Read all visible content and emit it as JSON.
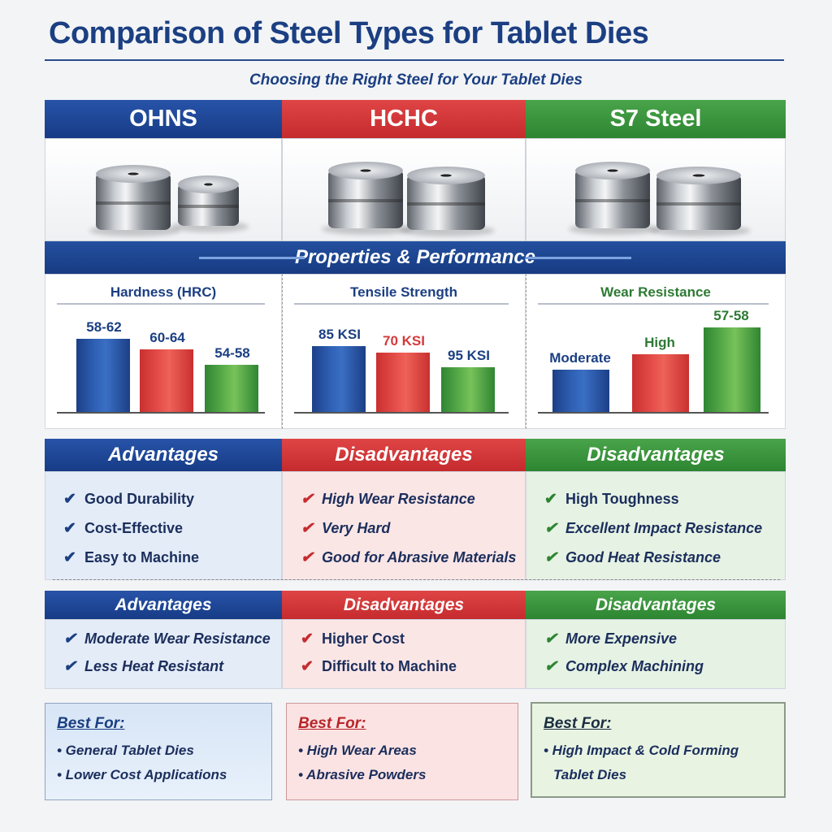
{
  "title": "Comparison of Steel Types for Tablet Dies",
  "subtitle": "Choosing the Right Steel for Your Tablet Dies",
  "columns": [
    {
      "name": "OHNS",
      "color": "#1f4a9c"
    },
    {
      "name": "HCHC",
      "color": "#d33a3b"
    },
    {
      "name": "S7 Steel",
      "color": "#3b953e"
    }
  ],
  "properties_banner": "Properties & Performance",
  "chart_data": [
    {
      "type": "bar",
      "title": "Hardness (HRC)",
      "categories": [
        "OHNS",
        "HCHC",
        "S7 Steel"
      ],
      "labels": [
        "58-62",
        "60-64",
        "54-58"
      ],
      "relative_level": [
        0.62,
        0.53,
        0.4
      ],
      "colors": [
        "#1f4a9c",
        "#d33a3b",
        "#3b953e"
      ]
    },
    {
      "type": "bar",
      "title": "Tensile Strength",
      "categories": [
        "OHNS",
        "HCHC",
        "S7 Steel"
      ],
      "labels": [
        "85 KSI",
        "70 KSI",
        "95 KSI"
      ],
      "relative_level": [
        0.56,
        0.5,
        0.38
      ],
      "colors": [
        "#1f4a9c",
        "#d33a3b",
        "#3b953e"
      ]
    },
    {
      "type": "bar",
      "title": "Wear Resistance",
      "categories": [
        "OHNS",
        "HCHC",
        "S7 Steel"
      ],
      "labels": [
        "Moderate",
        "High",
        "57-58"
      ],
      "relative_level": [
        0.36,
        0.49,
        0.72
      ],
      "colors": [
        "#1f4a9c",
        "#d33a3b",
        "#3b953e"
      ]
    }
  ],
  "sections": [
    {
      "top_header": "Advantages",
      "top_items": [
        "Good Durability",
        "Cost-Effective",
        "Easy to Machine"
      ],
      "bottom_header": "Advantages",
      "bottom_items": [
        "Moderate Wear Resistance",
        "Less Heat Resistant"
      ]
    },
    {
      "top_header": "Disadvantages",
      "top_items": [
        "High Wear Resistance",
        "Very Hard",
        "Good for Abrasive Materials"
      ],
      "bottom_header": "Disadvantages",
      "bottom_items": [
        "Higher Cost",
        "Difficult to Machine"
      ]
    },
    {
      "top_header": "Disadvantages",
      "top_items": [
        "High Toughness",
        "Excellent Impact Resistance",
        "Good Heat Resistance"
      ],
      "bottom_header": "Disadvantages",
      "bottom_items": [
        "More Expensive",
        "Complex Machining"
      ]
    }
  ],
  "check_icon": "✔",
  "best_for": [
    {
      "title": "Best For:",
      "items": [
        "• General Tablet Dies",
        "• Lower Cost Applications"
      ]
    },
    {
      "title": "Best For:",
      "items": [
        "• High Wear Areas",
        "• Abrasive Powders"
      ]
    },
    {
      "title": "Best For:",
      "items": [
        "• High Impact & Cold Forming",
        "Tablet Dies"
      ]
    }
  ]
}
